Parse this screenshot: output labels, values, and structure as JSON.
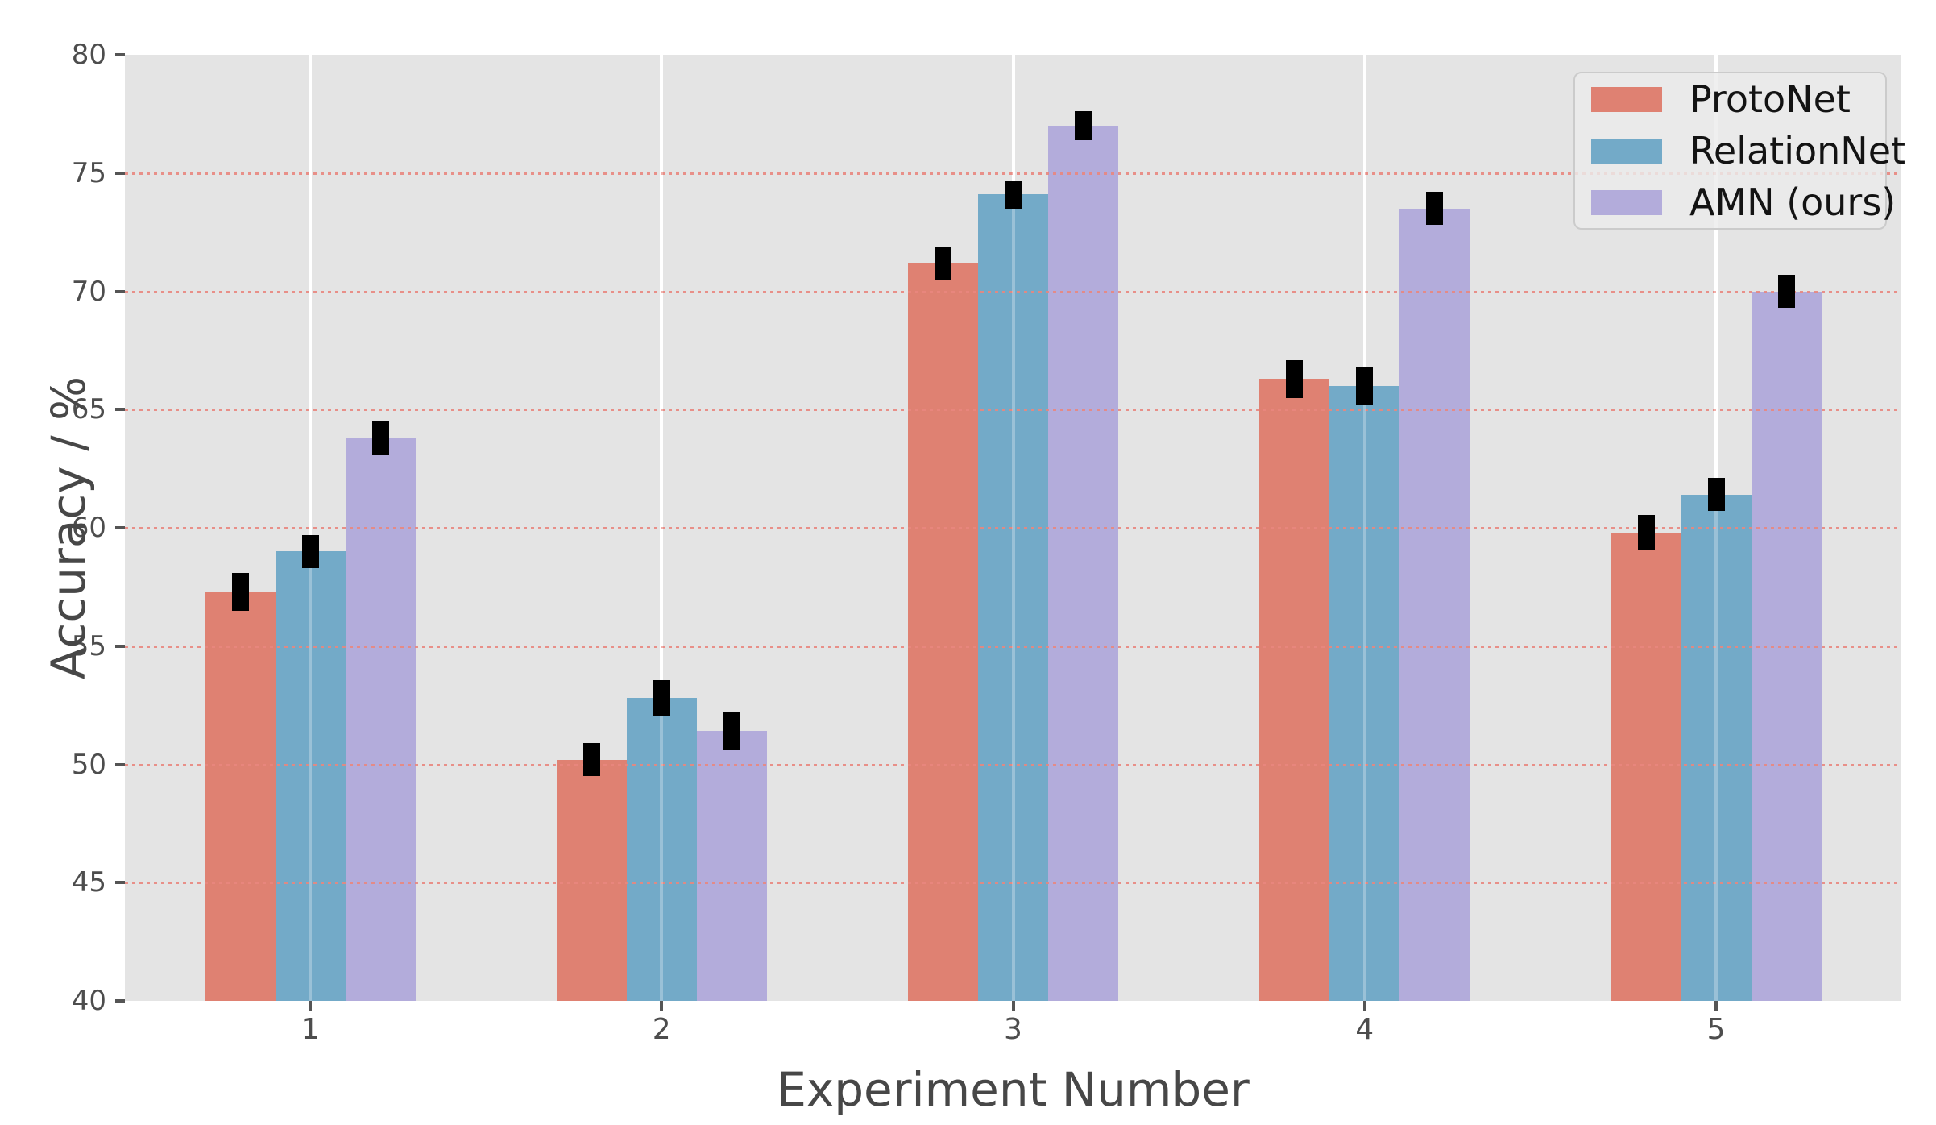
{
  "figure": {
    "background_color": "#ffffff",
    "plot_background_color": "#e4e4e4",
    "tick_color": "#4d4d4d"
  },
  "chart_data": {
    "type": "bar",
    "title": "",
    "xlabel": "Experiment Number",
    "ylabel": "Accuracy / %",
    "categories": [
      "1",
      "2",
      "3",
      "4",
      "5"
    ],
    "series": [
      {
        "name": "ProtoNet",
        "color": "#df8172",
        "values": [
          57.3,
          50.2,
          71.2,
          66.3,
          59.8
        ],
        "errors": [
          0.8,
          0.7,
          0.7,
          0.8,
          0.75
        ]
      },
      {
        "name": "RelationNet",
        "color": "#73aac8",
        "values": [
          59.0,
          52.8,
          74.1,
          66.0,
          61.4
        ],
        "errors": [
          0.7,
          0.75,
          0.6,
          0.8,
          0.7
        ]
      },
      {
        "name": "AMN (ours)",
        "color": "#b3acdb",
        "values": [
          63.8,
          51.4,
          77.0,
          73.5,
          70.0
        ],
        "errors": [
          0.7,
          0.8,
          0.6,
          0.7,
          0.7
        ]
      }
    ],
    "ylim": [
      40,
      80
    ],
    "yticks": [
      40,
      45,
      50,
      55,
      60,
      65,
      70,
      75,
      80
    ],
    "grid_yticks_dotted": [
      45,
      50,
      55,
      60,
      65,
      70,
      75
    ],
    "error_bar_color": "#000000",
    "grid": {
      "horizontal_style": "dotted",
      "horizontal_color": "#e8837b",
      "vertical_style": "solid",
      "vertical_color": "#ffffff"
    },
    "legend": {
      "position": "upper right"
    }
  }
}
